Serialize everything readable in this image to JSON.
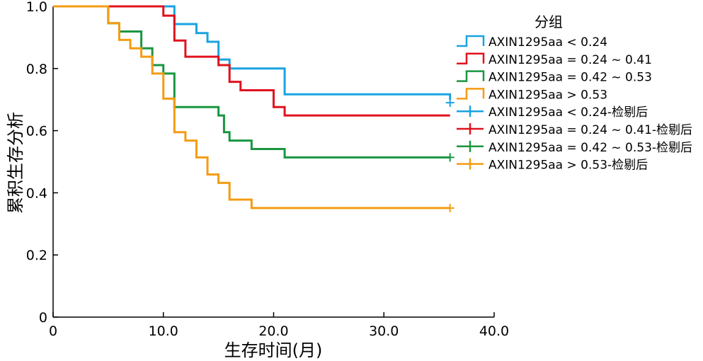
{
  "chart_data": {
    "type": "line",
    "xlabel": "生存时间(月)",
    "ylabel": "累积生存分析",
    "xlim": [
      0,
      40
    ],
    "ylim": [
      0,
      1
    ],
    "x_ticks": [
      "0",
      "10.0",
      "20.0",
      "30.0",
      "40.0"
    ],
    "y_ticks": [
      "0",
      "0.2",
      "0.4",
      "0.6",
      "0.8",
      "1.0"
    ],
    "grid": false,
    "legend": {
      "title": "分组",
      "placement": "top-right",
      "survival_entries": [
        "AXIN1295aa < 0.24",
        "AXIN1295aa = 0.24 ~ 0.41",
        "AXIN1295aa = 0.42 ~ 0.53",
        "AXIN1295aa > 0.53"
      ],
      "censored_entries": [
        "AXIN1295aa < 0.24-检剔后",
        "AXIN1295aa = 0.24 ~ 0.41-检剔后",
        "AXIN1295aa = 0.42 ~ 0.53-检剔后",
        "AXIN1295aa > 0.53-检剔后"
      ]
    },
    "series": [
      {
        "name": "AXIN1295aa < 0.24",
        "color": "#1aa3e0",
        "steps": [
          [
            0,
            1.0
          ],
          [
            11,
            0.943
          ],
          [
            13,
            0.914
          ],
          [
            14,
            0.886
          ],
          [
            15,
            0.829
          ],
          [
            16,
            0.8
          ],
          [
            21,
            0.717
          ],
          [
            36,
            0.7
          ]
        ],
        "end_x": 36,
        "censor": [
          [
            36,
            0.69
          ]
        ]
      },
      {
        "name": "AXIN1295aa = 0.24 ~ 0.41",
        "color": "#e0121e",
        "steps": [
          [
            0,
            1.0
          ],
          [
            10,
            0.97
          ],
          [
            11,
            0.89
          ],
          [
            12,
            0.838
          ],
          [
            15,
            0.811
          ],
          [
            16,
            0.757
          ],
          [
            17,
            0.73
          ],
          [
            20,
            0.676
          ],
          [
            21,
            0.649
          ]
        ],
        "end_x": 36,
        "censor": []
      },
      {
        "name": "AXIN1295aa = 0.42 ~ 0.53",
        "color": "#1a9641",
        "steps": [
          [
            0,
            1.0
          ],
          [
            5,
            0.946
          ],
          [
            6,
            0.919
          ],
          [
            8,
            0.865
          ],
          [
            9,
            0.811
          ],
          [
            10,
            0.784
          ],
          [
            11,
            0.676
          ],
          [
            15,
            0.649
          ],
          [
            15.5,
            0.595
          ],
          [
            16,
            0.568
          ],
          [
            18,
            0.541
          ],
          [
            21,
            0.514
          ]
        ],
        "end_x": 36,
        "censor": [
          [
            36,
            0.514
          ]
        ]
      },
      {
        "name": "AXIN1295aa > 0.53",
        "color": "#f39c12",
        "steps": [
          [
            0,
            1.0
          ],
          [
            5,
            0.946
          ],
          [
            6,
            0.892
          ],
          [
            7,
            0.865
          ],
          [
            8,
            0.838
          ],
          [
            9,
            0.784
          ],
          [
            10,
            0.703
          ],
          [
            11,
            0.595
          ],
          [
            12,
            0.568
          ],
          [
            13,
            0.514
          ],
          [
            14,
            0.459
          ],
          [
            15,
            0.432
          ],
          [
            16,
            0.378
          ],
          [
            18,
            0.351
          ]
        ],
        "end_x": 36,
        "censor": [
          [
            36,
            0.351
          ]
        ]
      }
    ]
  }
}
